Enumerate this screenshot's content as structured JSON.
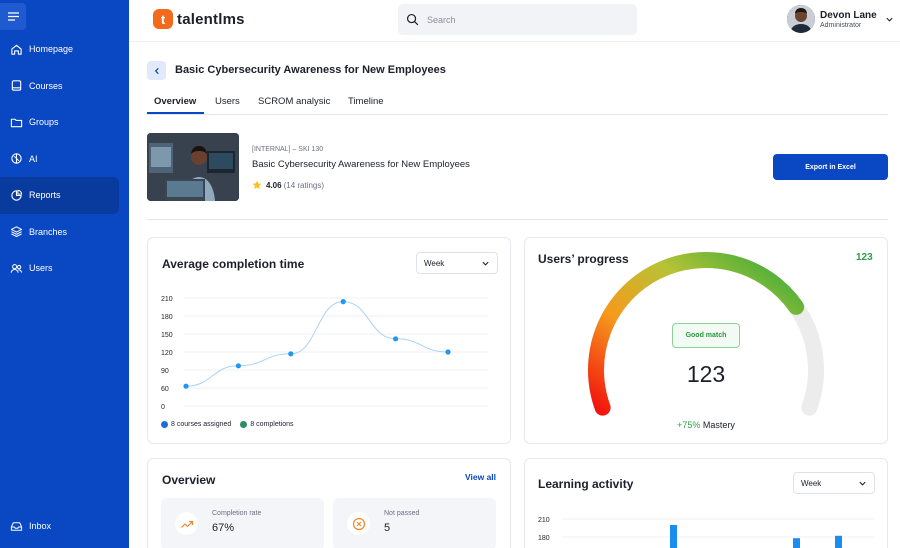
{
  "app": {
    "brand": "talentlms"
  },
  "sidebar": {
    "items": [
      {
        "label": "Homepage",
        "icon": "home-icon"
      },
      {
        "label": "Courses",
        "icon": "courses-icon"
      },
      {
        "label": "Groups",
        "icon": "folder-icon"
      },
      {
        "label": "AI",
        "icon": "ai-icon"
      },
      {
        "label": "Reports",
        "icon": "pie-chart-icon",
        "active": true
      },
      {
        "label": "Branches",
        "icon": "layers-icon"
      },
      {
        "label": "Users",
        "icon": "users-icon"
      }
    ],
    "inbox_label": "Inbox"
  },
  "header": {
    "search_placeholder": "Search",
    "user_name": "Devon Lane",
    "user_role": "Administrator"
  },
  "page": {
    "title": "Basic Cybersecurity Awareness for New Employees",
    "tabs": [
      "Overview",
      "Users",
      "SCROM analysic",
      "Timeline"
    ]
  },
  "course": {
    "code": "[INTERNAL] – SKI 130",
    "name": "Basic Cybersecurity Awareness for New Employees",
    "rating": "4.06",
    "ratings_count": "(14 ratings)",
    "export_label": "Export in Excel"
  },
  "avg_completion": {
    "title": "Average completion time",
    "period": "Week",
    "legend": [
      "8 courses assigned",
      "8 completions"
    ],
    "legend_colors": [
      "#1a6fd4",
      "#2e8b64"
    ]
  },
  "users_progress": {
    "title": "Users’ progress",
    "count": "123",
    "badge": "Good match",
    "value": "123",
    "mastery_pct": "+75%",
    "mastery_label": "Mastery",
    "fill_fraction": 0.75
  },
  "overview": {
    "title": "Overview",
    "view_all": "View all",
    "stats": [
      {
        "label": "Completion rate",
        "value": "67%",
        "icon": "trend-up-icon",
        "color": "#f0852d"
      },
      {
        "label": "Not passed",
        "value": "5",
        "icon": "x-circle-icon",
        "color": "#f0852d"
      }
    ]
  },
  "learning_activity": {
    "title": "Learning activity",
    "period": "Week"
  },
  "chart_data": [
    {
      "type": "line",
      "title": "Average completion time",
      "x": [
        1,
        2,
        3,
        4,
        5,
        6
      ],
      "values": [
        63,
        97,
        117,
        204,
        142,
        120
      ],
      "y_ticks": [
        0,
        60,
        90,
        120,
        150,
        180,
        210
      ],
      "ylim": [
        0,
        210
      ],
      "grid": true,
      "color": "#2196f3"
    },
    {
      "type": "bar",
      "title": "Learning activity",
      "y_ticks": [
        180,
        210
      ],
      "partial": true,
      "visible_bars": [
        {
          "x": 1,
          "value": 200
        },
        {
          "x": 2,
          "value": 178
        },
        {
          "x": 3,
          "value": 182
        }
      ],
      "color": "#1b8cf0"
    }
  ]
}
